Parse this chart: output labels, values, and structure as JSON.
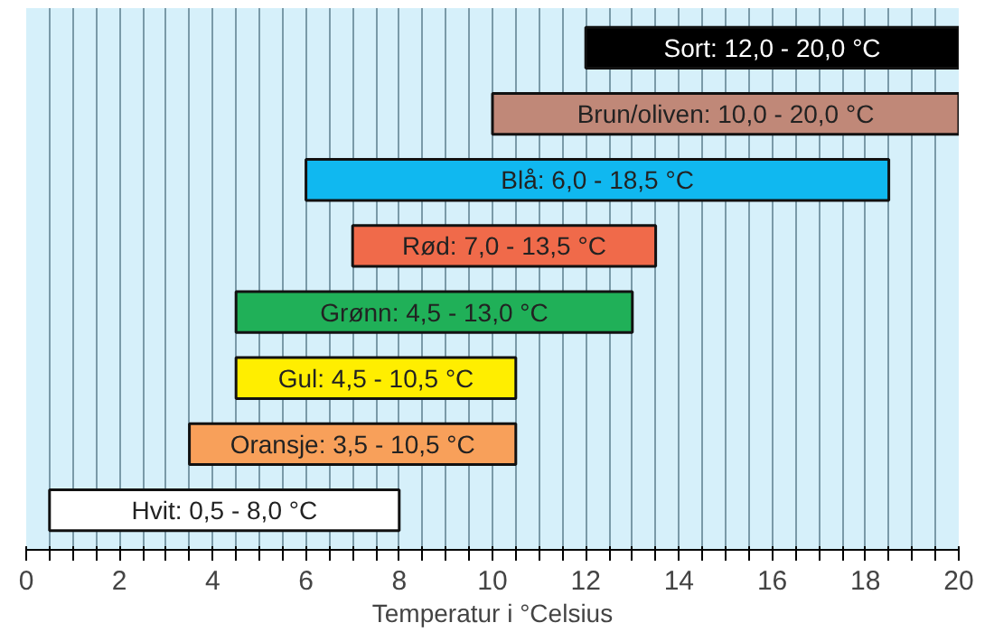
{
  "chart_data": {
    "type": "bar",
    "orientation": "horizontal",
    "xlabel": "Temperatur i °Celsius",
    "categories": [
      "Sort: 12,0 - 20,0 °C",
      "Brun/oliven: 10,0 - 20,0 °C",
      "Blå: 6,0 - 18,5 °C",
      "Rød: 7,0 - 13,5 °C",
      "Grønn: 4,5 - 13,0 °C",
      "Gul: 4,5 - 10,5 °C",
      "Oransje: 3,5 - 10,5 °C",
      "Hvit: 0,5 - 8,0 °C"
    ],
    "base": [
      12,
      10,
      6,
      7,
      4.5,
      4.5,
      3.5,
      0.5
    ],
    "values": [
      8,
      10,
      12.5,
      6.5,
      8.5,
      6,
      7,
      7.5
    ],
    "colors": [
      "#000000",
      "#c08878",
      "#10b8f0",
      "#f06a4a",
      "#20b058",
      "#ffee00",
      "#f8a05a",
      "#ffffff"
    ],
    "xlim": [
      0,
      20
    ],
    "xticks": [
      0,
      {
        "value": 0.5,
        "label": null
      },
      {
        "value": 1,
        "label": null
      },
      {
        "value": 1.5,
        "label": null
      },
      2,
      {
        "value": 2.5,
        "label": null
      },
      {
        "value": 3,
        "label": null
      },
      {
        "value": 3.5,
        "label": null
      },
      4,
      {
        "value": 4.5,
        "label": null
      },
      {
        "value": 5,
        "label": null
      },
      {
        "value": 5.5,
        "label": null
      },
      6,
      {
        "value": 6.5,
        "label": null
      },
      {
        "value": 7,
        "label": null
      },
      {
        "value": 7.5,
        "label": null
      },
      8,
      {
        "value": 8.5,
        "label": null
      },
      {
        "value": 9,
        "label": null
      },
      {
        "value": 9.5,
        "label": null
      },
      10,
      {
        "value": 10.5,
        "label": null
      },
      {
        "value": 11,
        "label": null
      },
      {
        "value": 11.5,
        "label": null
      },
      12,
      {
        "value": 12.5,
        "label": null
      },
      {
        "value": 13,
        "label": null
      },
      {
        "value": 13.5,
        "label": null
      },
      14,
      {
        "value": 14.5,
        "label": null
      },
      {
        "value": 15,
        "label": null
      },
      {
        "value": 15.5,
        "label": null
      },
      16,
      {
        "value": 16.5,
        "label": null
      },
      {
        "value": 17,
        "label": null
      },
      {
        "value": 17.5,
        "label": null
      },
      18,
      {
        "value": 18.5,
        "label": null
      },
      {
        "value": 19,
        "label": null
      },
      {
        "value": 19.5,
        "label": null
      },
      20
    ],
    "grid": "x",
    "tick_labels": "x"
  }
}
